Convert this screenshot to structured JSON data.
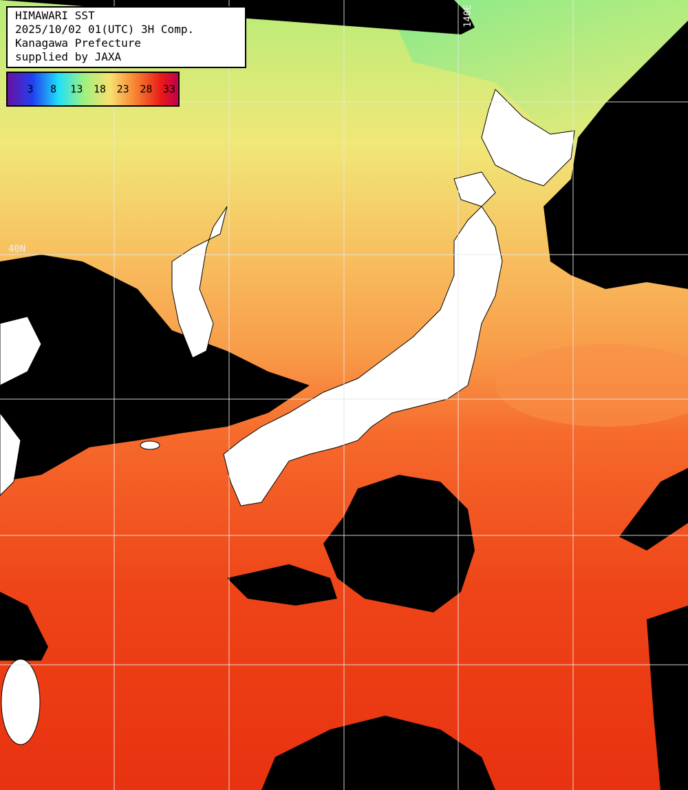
{
  "header": {
    "lines": [
      "HIMAWARI SST",
      "2025/10/02 01(UTC) 3H Comp.",
      "Kanagawa Prefecture",
      "supplied by JAXA"
    ]
  },
  "colorbar": {
    "ticks": [
      3,
      8,
      13,
      18,
      23,
      28,
      33
    ]
  },
  "grid_labels": {
    "latitude": "40N",
    "longitude": "140E"
  }
}
